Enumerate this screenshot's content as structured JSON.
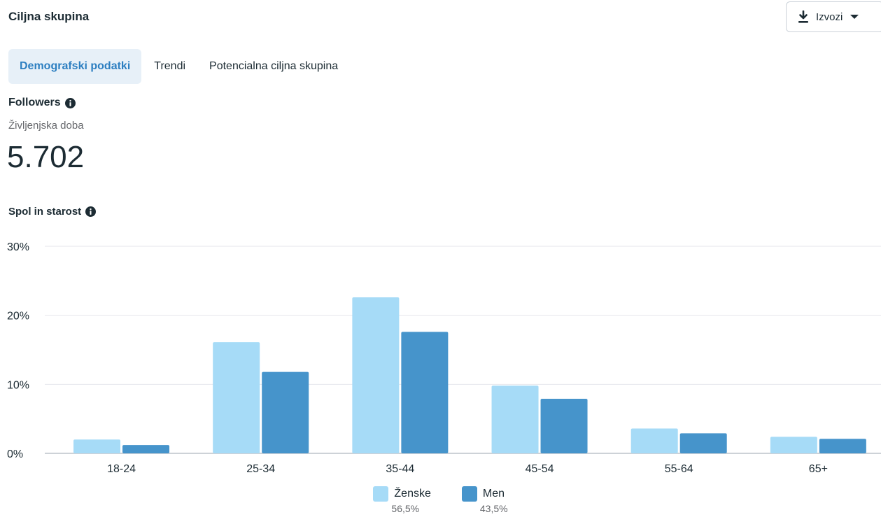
{
  "header": {
    "title": "Ciljna skupina",
    "export_label": "Izvozi"
  },
  "tabs": [
    {
      "label": "Demografski podatki",
      "active": true
    },
    {
      "label": "Trendi",
      "active": false
    },
    {
      "label": "Potencialna ciljna skupina",
      "active": false
    }
  ],
  "followers": {
    "title": "Followers",
    "subtitle": "Življenjska doba",
    "count": "5.702"
  },
  "chart_section": {
    "title": "Spol in starost"
  },
  "legend": [
    {
      "label": "Ženske",
      "pct": "56,5%",
      "color": "#a6dbf7"
    },
    {
      "label": "Men",
      "pct": "43,5%",
      "color": "#4694cb"
    }
  ],
  "chart_data": {
    "type": "bar",
    "categories": [
      "18-24",
      "25-34",
      "35-44",
      "45-54",
      "55-64",
      "65+"
    ],
    "series": [
      {
        "name": "Ženske",
        "values": [
          2.0,
          16.1,
          22.6,
          9.8,
          3.6,
          2.4
        ],
        "color": "#a6dbf7"
      },
      {
        "name": "Men",
        "values": [
          1.2,
          11.8,
          17.6,
          7.9,
          2.9,
          2.1
        ],
        "color": "#4694cb"
      }
    ],
    "yticks": [
      "0%",
      "10%",
      "20%",
      "30%"
    ],
    "ylim": [
      0,
      30
    ],
    "grid": true
  }
}
